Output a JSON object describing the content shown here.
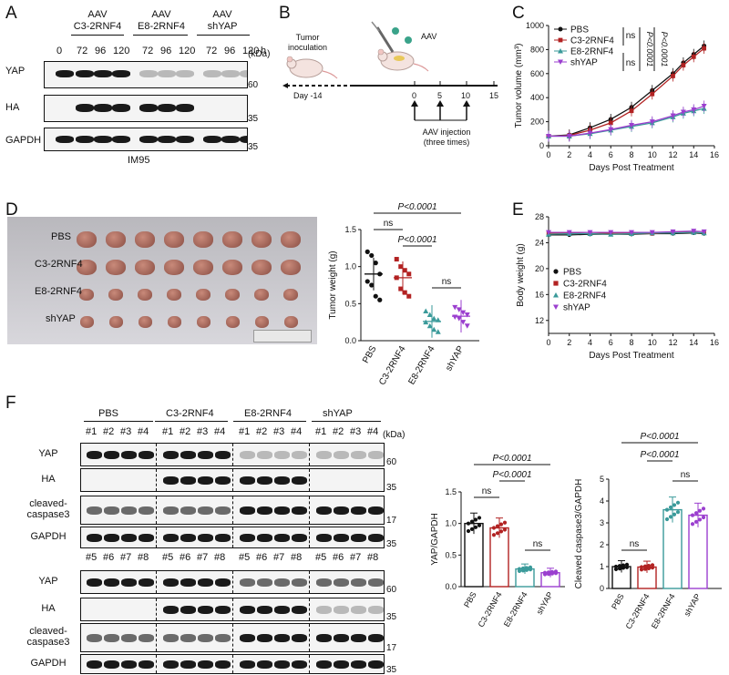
{
  "panels": {
    "A": "A",
    "B": "B",
    "C": "C",
    "D": "D",
    "E": "E",
    "F": "F"
  },
  "panelA": {
    "groups": [
      "AAV\nC3-2RNF4",
      "AAV\nE8-2RNF4",
      "AAV\nshYAP"
    ],
    "timepoints": [
      "0",
      "72",
      "96",
      "120",
      "72",
      "96",
      "120",
      "72",
      "96",
      "120",
      "h"
    ],
    "rows": [
      "YAP",
      "HA",
      "GAPDH"
    ],
    "kda_label": "(kDa)",
    "mw": [
      "60",
      "35",
      "35"
    ],
    "cell_line": "IM95"
  },
  "panelB": {
    "tumor_label": "Tumor\ninoculation",
    "aav_label": "AAV",
    "day_label": "Day -14",
    "ticks": [
      "0",
      "5",
      "10",
      "15"
    ],
    "injection_label": "AAV injection\n(three times)"
  },
  "panelC": {
    "ylabel": "Tumor volume (mm³)",
    "xlabel": "Days Post Treatment",
    "legend": [
      "PBS",
      "C3-2RNF4",
      "E8-2RNF4",
      "shYAP"
    ],
    "ns1": "ns",
    "ns2": "ns",
    "p1": "P<0.0001",
    "p2": "P<0.0001",
    "yticks": [
      "0",
      "200",
      "400",
      "600",
      "800",
      "1000"
    ],
    "xticks": [
      "0",
      "2",
      "4",
      "6",
      "8",
      "10",
      "12",
      "14",
      "16"
    ]
  },
  "panelD": {
    "photo_rows": [
      "PBS",
      "C3-2RNF4",
      "E8-2RNF4",
      "shYAP"
    ],
    "ylabel": "Tumor weight (g)",
    "categories": [
      "PBS",
      "C3-2RNF4",
      "E8-2RNF4",
      "shYAP"
    ],
    "yticks": [
      "0.0",
      "0.5",
      "1.0",
      "1.5"
    ],
    "p_top": "P<0.0001",
    "ns1": "ns",
    "p_mid": "P<0.0001",
    "ns2": "ns"
  },
  "panelE": {
    "ylabel": "Body weight (g)",
    "xlabel": "Days Post Treatment",
    "legend": [
      "PBS",
      "C3-2RNF4",
      "E8-2RNF4",
      "shYAP"
    ],
    "yticks": [
      "12",
      "16",
      "20",
      "24",
      "28"
    ],
    "xticks": [
      "0",
      "2",
      "4",
      "6",
      "8",
      "10",
      "12",
      "14",
      "16"
    ]
  },
  "panelF": {
    "groups": [
      "PBS",
      "C3-2RNF4",
      "E8-2RNF4",
      "shYAP"
    ],
    "lanes_top": [
      "#1",
      "#2",
      "#3",
      "#4"
    ],
    "lanes_bottom": [
      "#5",
      "#6",
      "#7",
      "#8"
    ],
    "rows": [
      "YAP",
      "HA",
      "cleaved-\ncaspase3",
      "GAPDH"
    ],
    "kda_label": "(kDa)",
    "mw": [
      "60",
      "35",
      "17",
      "35"
    ],
    "chart1": {
      "ylabel": "YAP/GAPDH",
      "p_top": "P<0.0001",
      "p_mid": "P<0.0001",
      "ns1": "ns",
      "ns2": "ns",
      "yticks": [
        "0.0",
        "0.5",
        "1.0",
        "1.5"
      ]
    },
    "chart2": {
      "ylabel": "Cleaved caspase3/GAPDH",
      "p_top": "P<0.0001",
      "p_mid": "P<0.0001",
      "ns1": "ns",
      "ns2": "ns",
      "yticks": [
        "0",
        "1",
        "2",
        "3",
        "4",
        "5"
      ]
    },
    "categories": [
      "PBS",
      "C3-2RNF4",
      "E8-2RNF4",
      "shYAP"
    ]
  },
  "chart_data": [
    {
      "type": "line",
      "title": "",
      "xlabel": "Days Post Treatment",
      "ylabel": "Tumor volume (mm³)",
      "x": [
        0,
        2,
        4,
        6,
        8,
        10,
        12,
        13,
        14,
        15
      ],
      "ylim": [
        0,
        1000
      ],
      "xlim": [
        0,
        16
      ],
      "series": [
        {
          "name": "PBS",
          "color": "#111111",
          "values": [
            80,
            90,
            150,
            220,
            320,
            460,
            600,
            690,
            760,
            830
          ]
        },
        {
          "name": "C3-2RNF4",
          "color": "#b22222",
          "values": [
            80,
            85,
            130,
            190,
            290,
            430,
            580,
            670,
            740,
            810
          ]
        },
        {
          "name": "E8-2RNF4",
          "color": "#3a9a9a",
          "values": [
            80,
            80,
            100,
            130,
            160,
            190,
            240,
            270,
            290,
            310
          ]
        },
        {
          "name": "shYAP",
          "color": "#9b3fcf",
          "values": [
            80,
            80,
            105,
            135,
            170,
            200,
            250,
            280,
            300,
            330
          ]
        }
      ]
    },
    {
      "type": "scatter",
      "title": "",
      "ylabel": "Tumor weight (g)",
      "categories": [
        "PBS",
        "C3-2RNF4",
        "E8-2RNF4",
        "shYAP"
      ],
      "ylim": [
        0,
        1.5
      ],
      "series": [
        {
          "name": "PBS",
          "color": "#111111",
          "values": [
            1.2,
            1.15,
            1.05,
            0.9,
            0.8,
            0.75,
            0.6,
            0.55
          ],
          "mean": 0.9
        },
        {
          "name": "C3-2RNF4",
          "color": "#b22222",
          "values": [
            1.1,
            1.0,
            0.95,
            0.9,
            0.85,
            0.7,
            0.65,
            0.6
          ],
          "mean": 0.85
        },
        {
          "name": "E8-2RNF4",
          "color": "#3a9a9a",
          "values": [
            0.4,
            0.35,
            0.3,
            0.28,
            0.25,
            0.2,
            0.15,
            0.12
          ],
          "mean": 0.26
        },
        {
          "name": "shYAP",
          "color": "#9b3fcf",
          "values": [
            0.45,
            0.42,
            0.38,
            0.35,
            0.32,
            0.3,
            0.25,
            0.2
          ],
          "mean": 0.33
        }
      ]
    },
    {
      "type": "line",
      "title": "",
      "xlabel": "Days Post Treatment",
      "ylabel": "Body weight (g)",
      "x": [
        0,
        2,
        4,
        6,
        8,
        10,
        12,
        14,
        15
      ],
      "ylim": [
        10,
        28
      ],
      "xlim": [
        0,
        16
      ],
      "series": [
        {
          "name": "PBS",
          "color": "#111111",
          "values": [
            25.2,
            25.2,
            25.3,
            25.3,
            25.3,
            25.4,
            25.4,
            25.5,
            25.4
          ]
        },
        {
          "name": "C3-2RNF4",
          "color": "#b22222",
          "values": [
            25.5,
            25.5,
            25.4,
            25.5,
            25.5,
            25.4,
            25.6,
            25.6,
            25.5
          ]
        },
        {
          "name": "E8-2RNF4",
          "color": "#3a9a9a",
          "values": [
            25.3,
            25.4,
            25.4,
            25.3,
            25.4,
            25.5,
            25.5,
            25.6,
            25.5
          ]
        },
        {
          "name": "shYAP",
          "color": "#9b3fcf",
          "values": [
            25.6,
            25.6,
            25.6,
            25.6,
            25.6,
            25.6,
            25.7,
            25.8,
            25.7
          ]
        }
      ]
    },
    {
      "type": "bar",
      "title": "",
      "ylabel": "YAP/GAPDH",
      "categories": [
        "PBS",
        "C3-2RNF4",
        "E8-2RNF4",
        "shYAP"
      ],
      "ylim": [
        0,
        1.5
      ],
      "values": [
        1.0,
        0.93,
        0.28,
        0.22
      ],
      "colors": [
        "#111111",
        "#b22222",
        "#3a9a9a",
        "#9b3fcf"
      ]
    },
    {
      "type": "bar",
      "title": "",
      "ylabel": "Cleaved caspase3/GAPDH",
      "categories": [
        "PBS",
        "C3-2RNF4",
        "E8-2RNF4",
        "shYAP"
      ],
      "ylim": [
        0,
        5
      ],
      "values": [
        1.0,
        0.98,
        3.6,
        3.35
      ],
      "colors": [
        "#111111",
        "#b22222",
        "#3a9a9a",
        "#9b3fcf"
      ]
    }
  ]
}
